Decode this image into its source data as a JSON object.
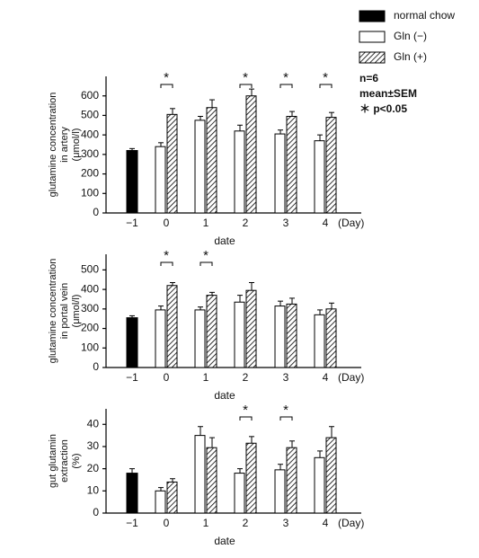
{
  "legend": [
    {
      "name": "normal chow",
      "color": "#000000",
      "pattern": "solid"
    },
    {
      "name": "Gln (−)",
      "color": "#ffffff",
      "pattern": "solid"
    },
    {
      "name": "Gln (+)",
      "color": "#ffffff",
      "pattern": "hatch"
    }
  ],
  "notes": [
    "n=6",
    "mean±SEM",
    "＊ p<0.05"
  ],
  "chart_data": [
    {
      "type": "bar",
      "ylabel": [
        "glutamine concentration",
        "in artery",
        "(μmol/l)"
      ],
      "xlabel": "date",
      "x_unit": "(Day)",
      "categories": [
        "−1",
        "0",
        "1",
        "2",
        "3",
        "4"
      ],
      "series": [
        {
          "values": [
            320,
            null,
            null,
            null,
            null,
            null
          ],
          "errors": [
            10,
            null,
            null,
            null,
            null,
            null
          ]
        },
        {
          "values": [
            null,
            340,
            475,
            420,
            405,
            370
          ],
          "errors": [
            null,
            20,
            20,
            30,
            20,
            30
          ]
        },
        {
          "values": [
            null,
            505,
            540,
            600,
            495,
            490
          ],
          "errors": [
            null,
            30,
            40,
            35,
            25,
            25
          ]
        }
      ],
      "stars": [
        null,
        "*",
        null,
        "*",
        "*",
        "*"
      ],
      "ylim": [
        0,
        700
      ],
      "yticks": [
        0,
        100,
        200,
        300,
        400,
        500,
        600
      ]
    },
    {
      "type": "bar",
      "ylabel": [
        "glutamine concentration",
        "in portal vein",
        "(μmol/l)"
      ],
      "xlabel": "date",
      "x_unit": "(Day)",
      "categories": [
        "−1",
        "0",
        "1",
        "2",
        "3",
        "4"
      ],
      "series": [
        {
          "values": [
            255,
            null,
            null,
            null,
            null,
            null
          ],
          "errors": [
            10,
            null,
            null,
            null,
            null,
            null
          ]
        },
        {
          "values": [
            null,
            295,
            295,
            335,
            315,
            270
          ],
          "errors": [
            null,
            20,
            15,
            35,
            25,
            25
          ]
        },
        {
          "values": [
            null,
            420,
            370,
            395,
            325,
            300
          ],
          "errors": [
            null,
            15,
            15,
            40,
            30,
            30
          ]
        }
      ],
      "stars": [
        null,
        "*",
        "*",
        null,
        null,
        null
      ],
      "ylim": [
        0,
        580
      ],
      "yticks": [
        0,
        100,
        200,
        300,
        400,
        500
      ]
    },
    {
      "type": "bar",
      "ylabel": [
        "gut glutamin",
        "extraction",
        "(%)"
      ],
      "xlabel": "date",
      "x_unit": "(Day)",
      "categories": [
        "−1",
        "0",
        "1",
        "2",
        "3",
        "4"
      ],
      "series": [
        {
          "values": [
            18,
            null,
            null,
            null,
            null,
            null
          ],
          "errors": [
            2,
            null,
            null,
            null,
            null,
            null
          ]
        },
        {
          "values": [
            null,
            10,
            35,
            18,
            19.5,
            25
          ],
          "errors": [
            null,
            1.5,
            4,
            2,
            2.5,
            3
          ]
        },
        {
          "values": [
            null,
            14,
            29.5,
            31.5,
            29.5,
            34
          ],
          "errors": [
            null,
            1.5,
            4.5,
            3,
            3,
            5
          ]
        }
      ],
      "stars": [
        null,
        null,
        null,
        "*",
        "*",
        null
      ],
      "ylim": [
        0,
        47
      ],
      "yticks": [
        0,
        10,
        20,
        30,
        40
      ]
    }
  ]
}
